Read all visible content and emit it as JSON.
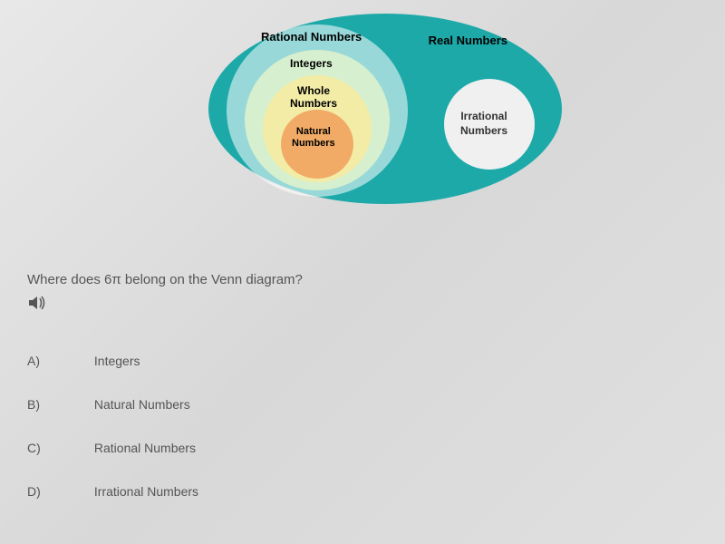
{
  "venn": {
    "real_label": "Real Numbers",
    "rational_label": "Rational Numbers",
    "integers_label": "Integers",
    "whole_label": "Whole\nNumbers",
    "natural_label": "Natural\nNumbers",
    "irrational_label": "Irrational\nNumbers",
    "colors": {
      "real_bg": "#1ea9a9",
      "rational_bg": "rgba(255,255,255,0.55)",
      "integers_bg": "rgba(255,255,200,0.6)",
      "whole_bg": "rgba(255,235,150,0.7)",
      "natural_bg": "rgba(240,160,90,0.85)",
      "irrational_bg": "#f0f0f0"
    }
  },
  "question_text": "Where does 6π belong on the Venn diagram?",
  "audio_symbol": "🔊",
  "options": [
    {
      "letter": "A)",
      "text": "Integers"
    },
    {
      "letter": "B)",
      "text": "Natural Numbers"
    },
    {
      "letter": "C)",
      "text": "Rational Numbers"
    },
    {
      "letter": "D)",
      "text": "Irrational Numbers"
    }
  ]
}
